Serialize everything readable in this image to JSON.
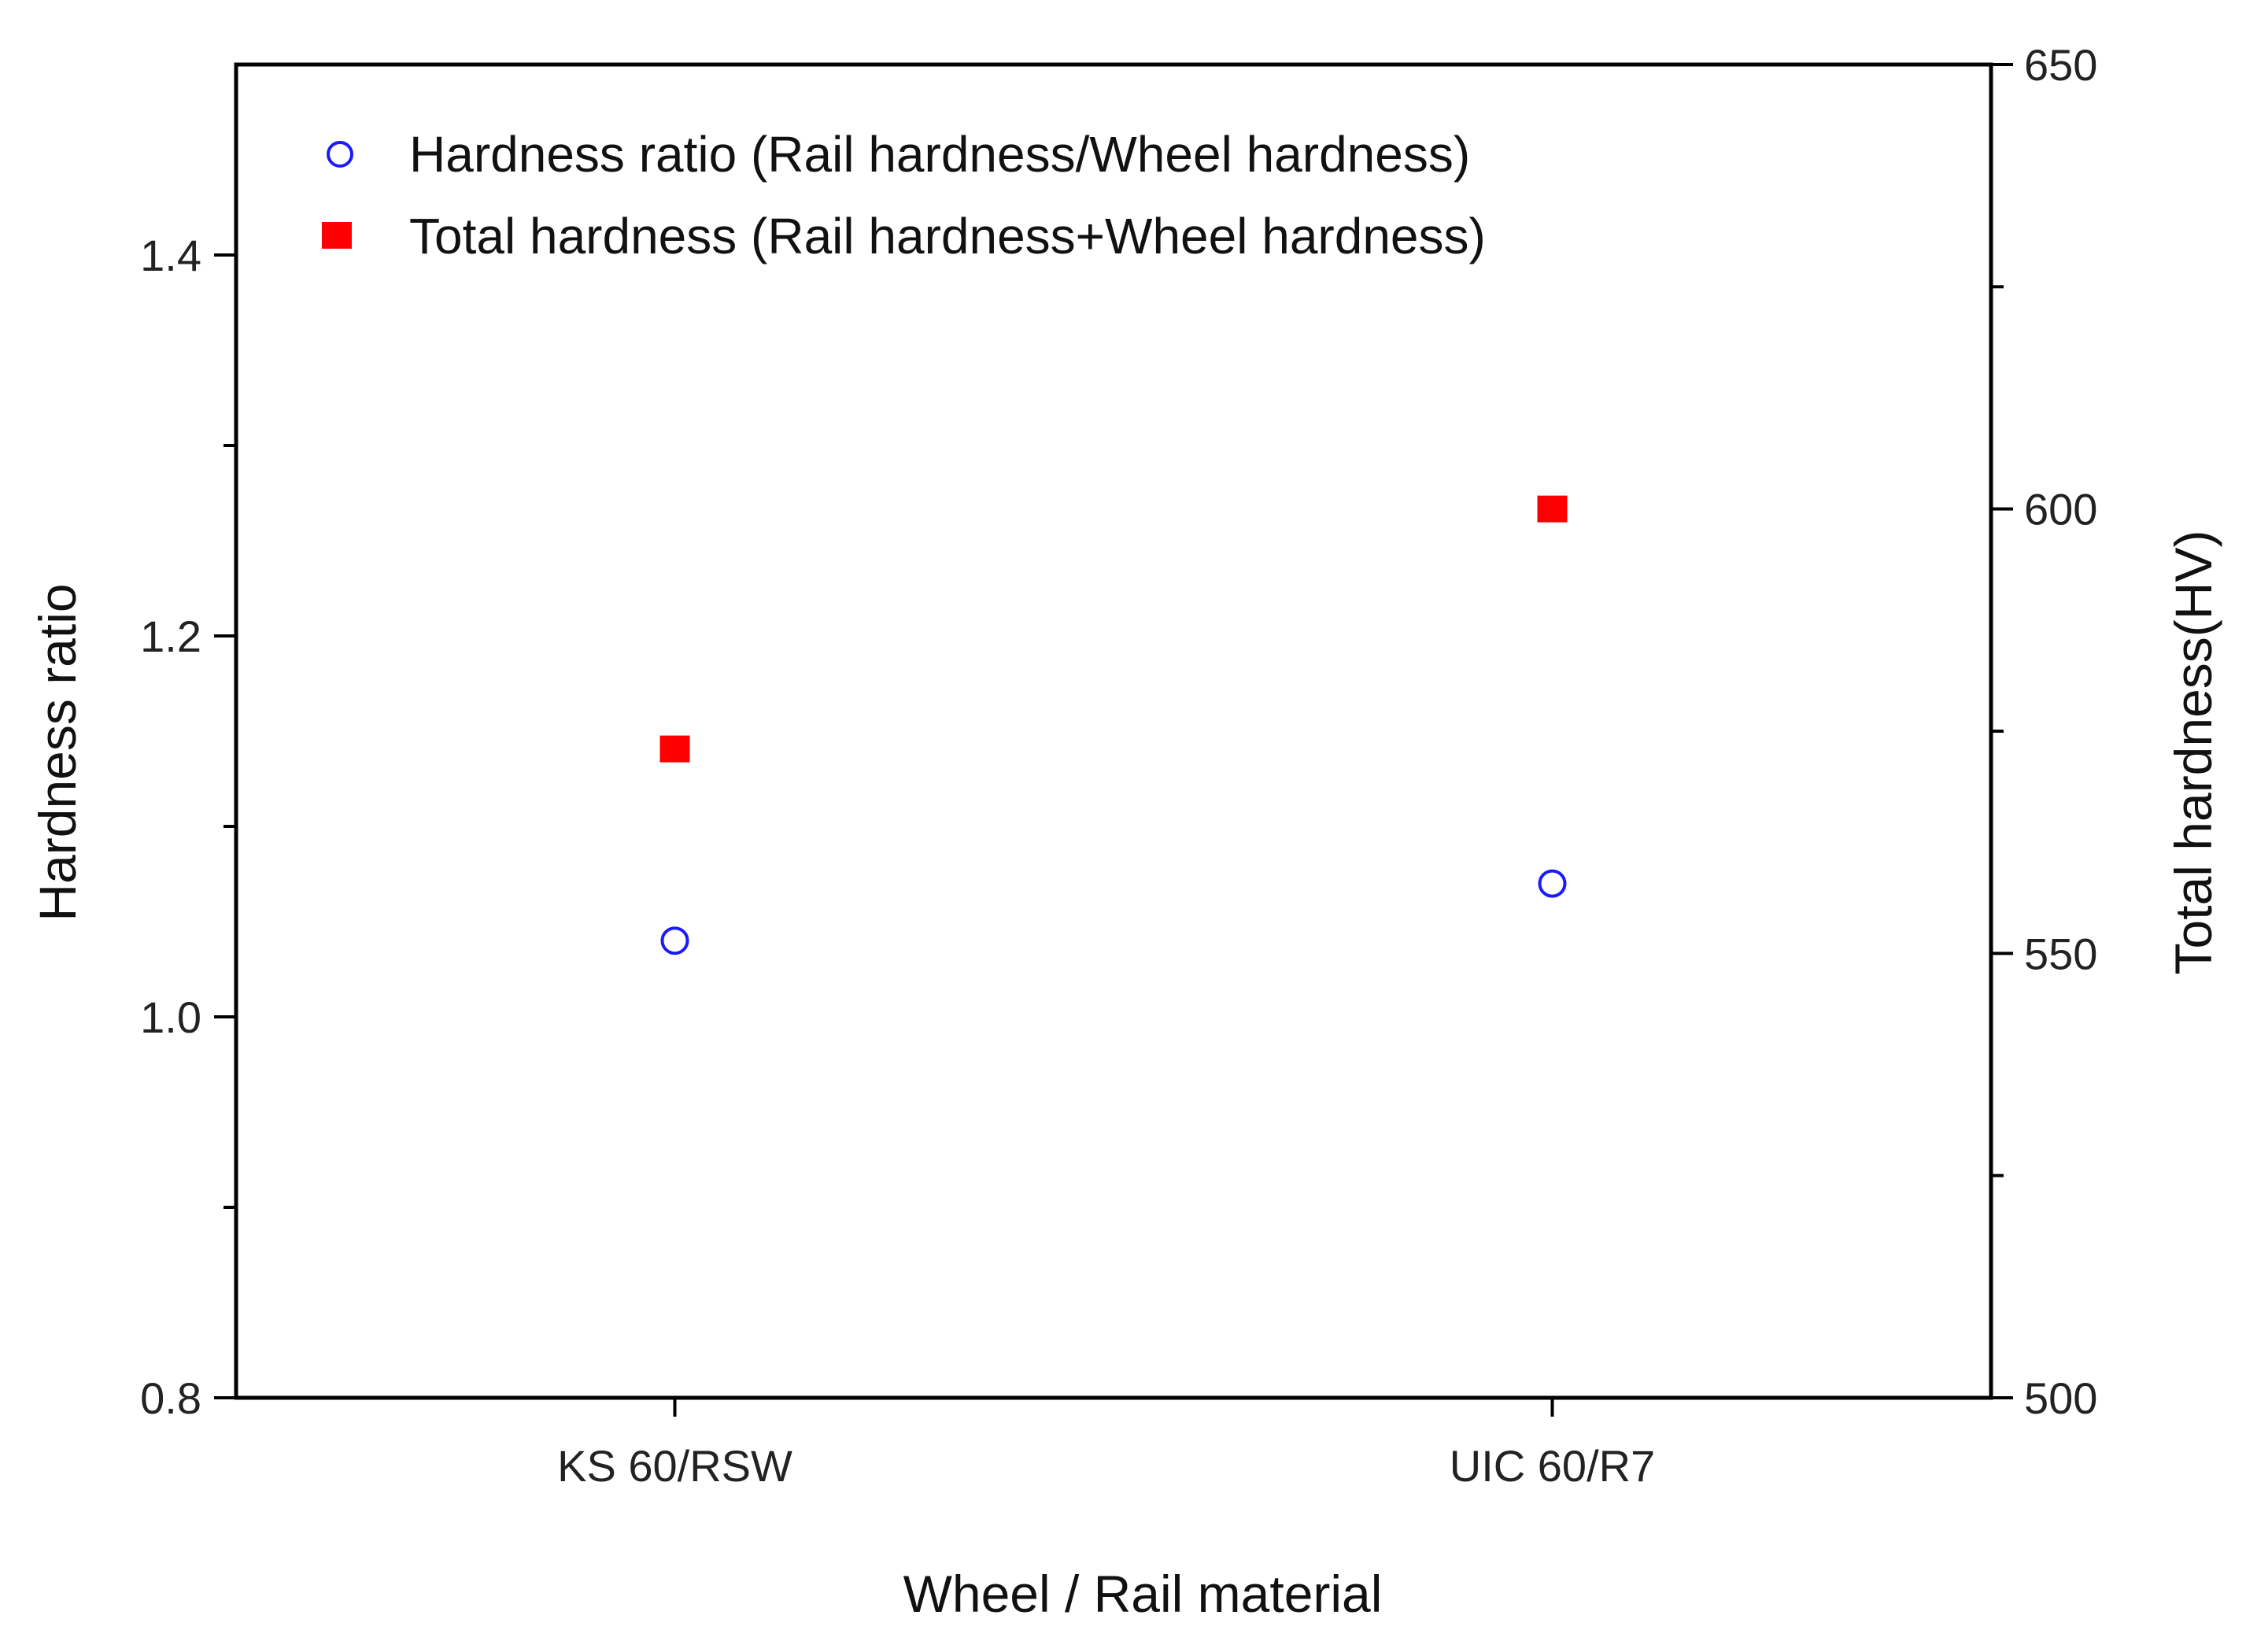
{
  "chart_data": {
    "type": "scatter",
    "categories": [
      "KS 60/RSW",
      "UIC 60/R7"
    ],
    "xlabel": "Wheel / Rail material",
    "ylabel_left": "Hardness ratio",
    "ylabel_right": "Total hardness(HV)",
    "ylim_left": [
      0.8,
      1.5
    ],
    "ylim_right": [
      500,
      650
    ],
    "yticks_left": [
      "0.8",
      "1.0",
      "1.2",
      "1.4"
    ],
    "yticks_right": [
      "500",
      "550",
      "600",
      "650"
    ],
    "grid": false,
    "legend_position": "top-left",
    "series": [
      {
        "name": "Hardness ratio (Rail hardness/Wheel hardness)",
        "axis": "left",
        "marker": "open-circle",
        "color": "#1a1aff",
        "values": [
          1.04,
          1.07
        ]
      },
      {
        "name": "Total hardness (Rail hardness+Wheel hardness)",
        "axis": "right",
        "marker": "filled-square",
        "color": "#ff0000",
        "values": [
          573,
          600
        ]
      }
    ]
  }
}
